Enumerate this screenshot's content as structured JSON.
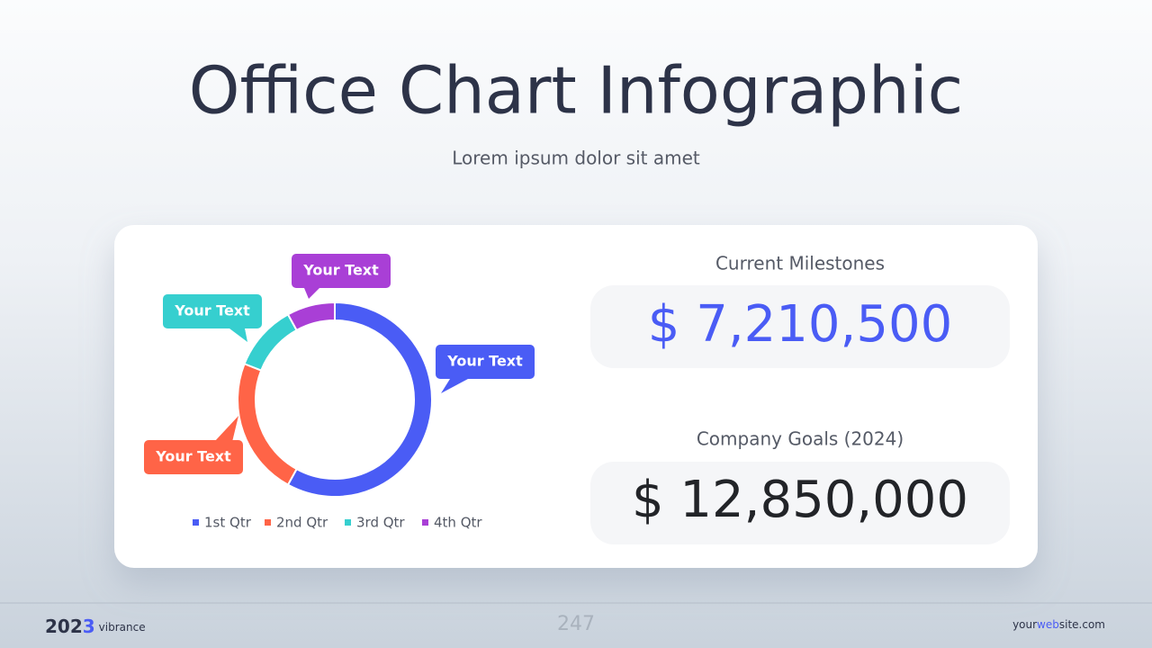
{
  "header": {
    "title": "Office Chart Infographic",
    "subtitle": "Lorem ipsum dolor sit amet"
  },
  "chart_data": {
    "type": "donut",
    "categories": [
      "1st Qtr",
      "2nd Qtr",
      "3rd Qtr",
      "4th Qtr"
    ],
    "values": [
      58,
      23,
      11,
      8
    ],
    "colors": [
      "#4a5cf5",
      "#ff6447",
      "#36cfcf",
      "#a93fd6"
    ],
    "annotations": [
      "Your Text",
      "Your Text",
      "Your Text",
      "Your Text"
    ]
  },
  "milestones": [
    {
      "label": "Current Milestones",
      "value": "$ 7,210,500"
    },
    {
      "label": "Company Goals (2024)",
      "value": "$ 12,850,000"
    }
  ],
  "footer": {
    "year_a": "202",
    "year_b": "3",
    "brand": "vibrance",
    "page": "247",
    "site_a": "your",
    "site_b": "web",
    "site_c": "site.com"
  }
}
